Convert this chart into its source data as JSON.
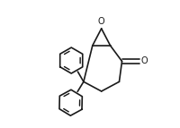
{
  "background_color": "#ffffff",
  "line_color": "#1a1a1a",
  "line_width": 1.2,
  "fig_width": 2.01,
  "fig_height": 1.43,
  "dpi": 100
}
